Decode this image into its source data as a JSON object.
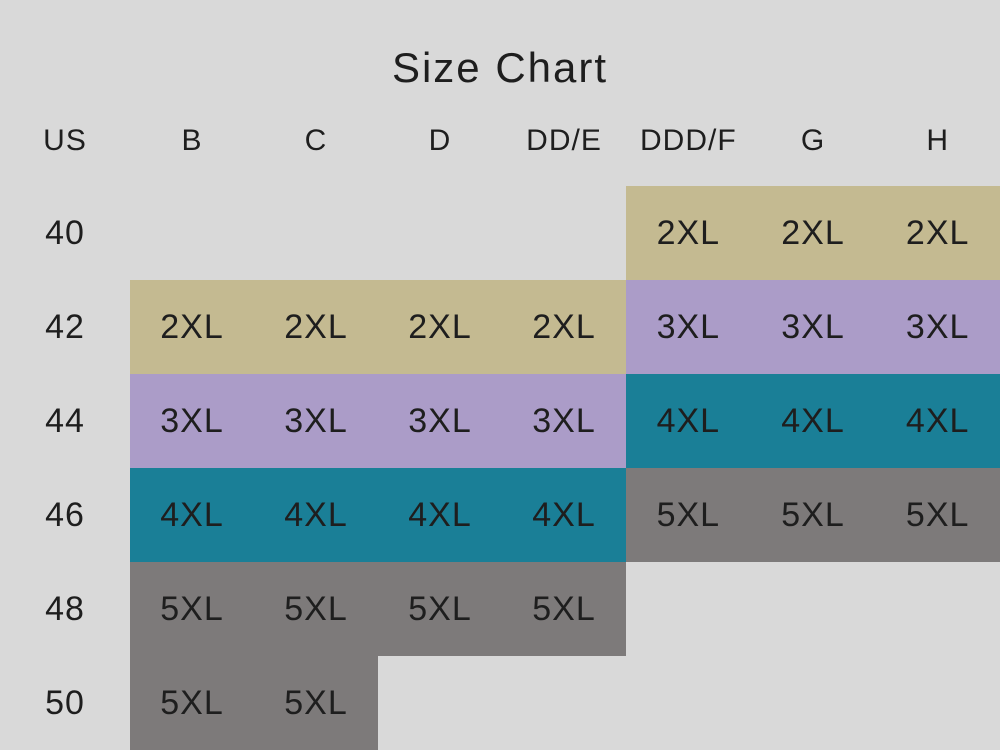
{
  "chart_data": {
    "type": "table",
    "title": "Size Chart",
    "columns": [
      "US",
      "B",
      "C",
      "D",
      "DD/E",
      "DDD/F",
      "G",
      "H"
    ],
    "rows": [
      {
        "us": "40",
        "cells": [
          "",
          "",
          "",
          "",
          "2XL",
          "2XL",
          "2XL"
        ]
      },
      {
        "us": "42",
        "cells": [
          "2XL",
          "2XL",
          "2XL",
          "2XL",
          "3XL",
          "3XL",
          "3XL"
        ]
      },
      {
        "us": "44",
        "cells": [
          "3XL",
          "3XL",
          "3XL",
          "3XL",
          "4XL",
          "4XL",
          "4XL"
        ]
      },
      {
        "us": "46",
        "cells": [
          "4XL",
          "4XL",
          "4XL",
          "4XL",
          "5XL",
          "5XL",
          "5XL"
        ]
      },
      {
        "us": "48",
        "cells": [
          "5XL",
          "5XL",
          "5XL",
          "5XL",
          "",
          "",
          ""
        ]
      },
      {
        "us": "50",
        "cells": [
          "5XL",
          "5XL",
          "",
          "",
          "",
          "",
          ""
        ]
      }
    ],
    "size_colors": {
      "2XL": "#c4ba91",
      "3XL": "#ab9cc8",
      "4XL": "#1a7f97",
      "5XL": "#7d7a7a"
    },
    "background_color": "#d9d9d9",
    "text_color": "#1e1e1e",
    "legend_position": "none",
    "grid_lines": false
  }
}
